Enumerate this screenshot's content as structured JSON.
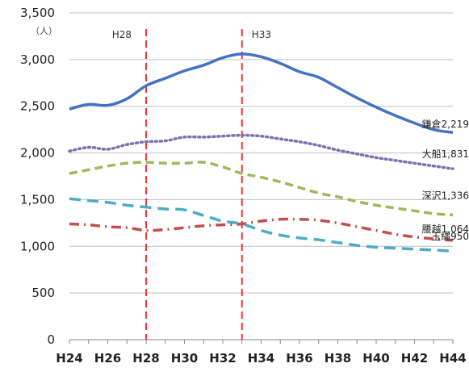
{
  "chart_data": {
    "type": "line",
    "title": "",
    "xlabel": "",
    "ylabel": "（人）",
    "ylim": [
      0,
      3500
    ],
    "yticks": [
      0,
      500,
      1000,
      1500,
      2000,
      2500,
      3000,
      3500
    ],
    "ytick_labels": [
      "0",
      "500",
      "1,000",
      "1,500",
      "2,000",
      "2,500",
      "3,000",
      "3,500"
    ],
    "grid": true,
    "x": [
      "H24",
      "H25",
      "H26",
      "H27",
      "H28",
      "H29",
      "H30",
      "H31",
      "H32",
      "H33",
      "H34",
      "H35",
      "H36",
      "H37",
      "H38",
      "H39",
      "H40",
      "H41",
      "H42",
      "H43",
      "H44"
    ],
    "xtick_labels": [
      "H24",
      "H26",
      "H28",
      "H30",
      "H32",
      "H34",
      "H36",
      "H38",
      "H40",
      "H42",
      "H44"
    ],
    "reference_lines": [
      {
        "label": "H28",
        "x": "H28",
        "color": "#ff3333"
      },
      {
        "label": "H33",
        "x": "H33",
        "color": "#ff3333"
      }
    ],
    "series": [
      {
        "name": "鎌倉",
        "end_label": "鎌倉2,219",
        "color": "#4472c4",
        "style": "solid",
        "values": [
          2470,
          2520,
          2510,
          2580,
          2720,
          2800,
          2880,
          2940,
          3020,
          3060,
          3030,
          2960,
          2870,
          2810,
          2700,
          2590,
          2490,
          2400,
          2320,
          2250,
          2219
        ]
      },
      {
        "name": "大船",
        "end_label": "大船1,831",
        "color": "#7f6fb0",
        "style": "dotted",
        "values": [
          2020,
          2060,
          2040,
          2090,
          2120,
          2130,
          2170,
          2170,
          2180,
          2190,
          2180,
          2150,
          2120,
          2080,
          2030,
          1990,
          1950,
          1920,
          1890,
          1860,
          1831
        ]
      },
      {
        "name": "深沢",
        "end_label": "深沢1,336",
        "color": "#9bbb59",
        "style": "dashed",
        "values": [
          1780,
          1820,
          1860,
          1890,
          1900,
          1890,
          1890,
          1900,
          1850,
          1780,
          1740,
          1690,
          1630,
          1570,
          1530,
          1480,
          1440,
          1410,
          1380,
          1350,
          1336
        ]
      },
      {
        "name": "腰越",
        "end_label": "腰越1,064",
        "color": "#c0504d",
        "style": "dashdot",
        "values": [
          1240,
          1230,
          1210,
          1200,
          1170,
          1180,
          1200,
          1220,
          1230,
          1240,
          1270,
          1290,
          1290,
          1280,
          1250,
          1210,
          1170,
          1130,
          1100,
          1080,
          1064
        ]
      },
      {
        "name": "玉縄",
        "end_label": "玉縄950",
        "color": "#4bacc6",
        "style": "longdash",
        "values": [
          1510,
          1490,
          1470,
          1440,
          1420,
          1400,
          1390,
          1330,
          1270,
          1240,
          1170,
          1120,
          1090,
          1070,
          1040,
          1010,
          990,
          980,
          970,
          960,
          950
        ]
      }
    ]
  }
}
